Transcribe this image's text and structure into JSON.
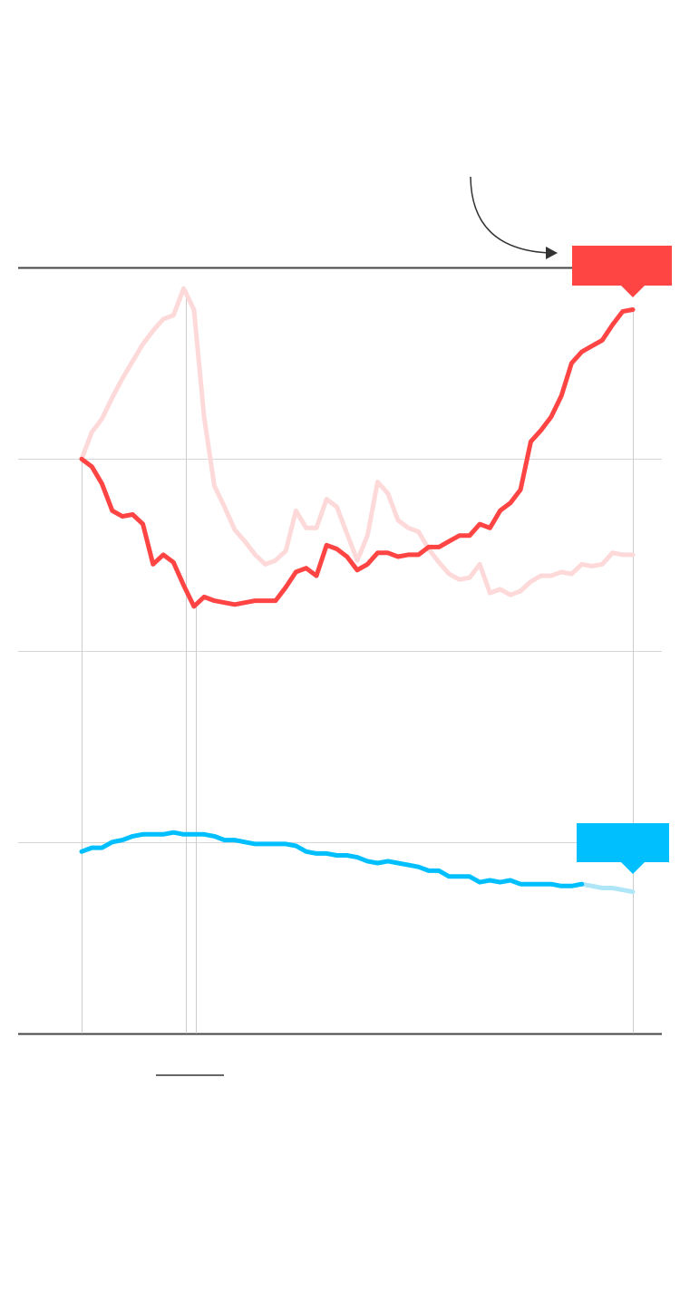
{
  "chart_data": {
    "type": "line",
    "x": [
      0,
      1,
      2,
      3,
      4,
      5,
      6,
      7,
      8,
      9,
      10,
      11,
      12,
      13,
      14,
      15,
      16,
      17,
      18,
      19,
      20,
      21,
      22,
      23,
      24,
      25,
      26,
      27,
      28,
      29,
      30,
      31,
      32,
      33,
      34,
      35,
      36,
      37,
      38,
      39,
      40,
      41,
      42,
      43,
      44,
      45,
      46,
      47,
      48,
      49,
      50,
      51,
      52,
      53,
      54
    ],
    "xlim": [
      0,
      54
    ],
    "ylim": [
      0,
      4
    ],
    "yticks": [
      0,
      1,
      2,
      3,
      4
    ],
    "grid": true,
    "series": [
      {
        "color": "#fdd9d9",
        "values": [
          3.0,
          3.14,
          3.21,
          3.32,
          3.42,
          3.51,
          3.6,
          3.67,
          3.73,
          3.75,
          3.89,
          3.78,
          3.22,
          2.86,
          2.75,
          2.63,
          2.57,
          2.5,
          2.45,
          2.47,
          2.52,
          2.73,
          2.64,
          2.64,
          2.79,
          2.75,
          2.61,
          2.47,
          2.6,
          2.88,
          2.82,
          2.68,
          2.64,
          2.62,
          2.53,
          2.46,
          2.4,
          2.37,
          2.38,
          2.45,
          2.3,
          2.32,
          2.29,
          2.31,
          2.36,
          2.39,
          2.39,
          2.41,
          2.4,
          2.45,
          2.44,
          2.45,
          2.51,
          2.5,
          2.5
        ]
      },
      {
        "color": "#aee6f8",
        "values": [
          null,
          null,
          null,
          null,
          null,
          null,
          null,
          null,
          null,
          null,
          null,
          null,
          null,
          null,
          null,
          null,
          null,
          null,
          null,
          null,
          null,
          null,
          null,
          null,
          null,
          null,
          null,
          null,
          null,
          null,
          null,
          null,
          null,
          null,
          null,
          null,
          null,
          null,
          null,
          null,
          null,
          null,
          null,
          null,
          null,
          null,
          null,
          null,
          null,
          0.78,
          0.77,
          0.76,
          0.76,
          0.75,
          0.74
        ]
      },
      {
        "color": "#ff4444",
        "values": [
          3.0,
          2.96,
          2.87,
          2.73,
          2.7,
          2.71,
          2.66,
          2.45,
          2.5,
          2.46,
          2.34,
          2.23,
          2.28,
          2.26,
          2.25,
          2.24,
          2.25,
          2.26,
          2.26,
          2.26,
          2.33,
          2.41,
          2.43,
          2.39,
          2.55,
          2.53,
          2.49,
          2.42,
          2.45,
          2.51,
          2.51,
          2.49,
          2.5,
          2.5,
          2.54,
          2.54,
          2.57,
          2.6,
          2.6,
          2.66,
          2.64,
          2.73,
          2.77,
          2.84,
          3.09,
          3.15,
          3.22,
          3.33,
          3.5,
          3.56,
          3.59,
          3.62,
          3.7,
          3.77,
          3.78
        ]
      },
      {
        "color": "#00bfff",
        "values": [
          0.95,
          0.97,
          0.97,
          1.0,
          1.01,
          1.03,
          1.04,
          1.04,
          1.04,
          1.05,
          1.04,
          1.04,
          1.04,
          1.03,
          1.01,
          1.01,
          1.0,
          0.99,
          0.99,
          0.99,
          0.99,
          0.98,
          0.95,
          0.94,
          0.94,
          0.93,
          0.93,
          0.92,
          0.9,
          0.89,
          0.9,
          0.89,
          0.88,
          0.87,
          0.85,
          0.85,
          0.82,
          0.82,
          0.82,
          0.79,
          0.8,
          0.79,
          0.8,
          0.78,
          0.78,
          0.78,
          0.78,
          0.77,
          0.77,
          0.78,
          null,
          null,
          null,
          null,
          null
        ]
      }
    ]
  }
}
